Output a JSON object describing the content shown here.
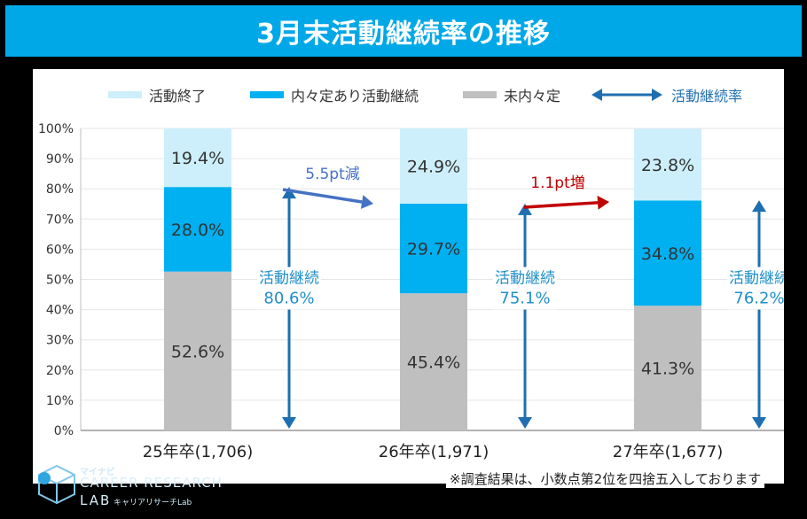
{
  "title": "3月末活動継続率の推移",
  "legend": {
    "ended": "活動終了",
    "continuing": "内々定あり活動継続",
    "no_offer": "未内々定",
    "rate": "活動継続率"
  },
  "colors": {
    "ended": "#cdeffb",
    "continuing": "#00b0f0",
    "no_offer": "#bfbfbf",
    "arrow": "#1f6fb0",
    "decrease": "#4472c4",
    "increase": "#c00000",
    "title_bg": "#00a8e8"
  },
  "chart_data": {
    "type": "bar",
    "stacked": true,
    "categories": [
      "25年卒(1,706)",
      "26年卒(1,971)",
      "27年卒(1,677)"
    ],
    "series": [
      {
        "name": "未内々定",
        "values": [
          52.6,
          45.4,
          41.3
        ]
      },
      {
        "name": "内々定あり活動継続",
        "values": [
          28.0,
          29.7,
          34.8
        ]
      },
      {
        "name": "活動終了",
        "values": [
          19.4,
          24.9,
          23.8
        ]
      }
    ],
    "continuation_rate": [
      80.6,
      75.1,
      76.2
    ],
    "rate_label": "活動継続",
    "value_labels": [
      [
        "52.6%",
        "28.0%",
        "19.4%"
      ],
      [
        "45.4%",
        "29.7%",
        "24.9%"
      ],
      [
        "41.3%",
        "34.8%",
        "23.8%"
      ]
    ],
    "rate_labels": [
      "80.6%",
      "75.1%",
      "76.2%"
    ],
    "changes": [
      "5.5pt減",
      "1.1pt増"
    ],
    "yticks": [
      "0%",
      "10%",
      "20%",
      "30%",
      "40%",
      "50%",
      "60%",
      "70%",
      "80%",
      "90%",
      "100%"
    ],
    "ylim": [
      0,
      100
    ],
    "grid": true,
    "legend_position": "top"
  },
  "footnote": "※調査結果は、小数点第2位を四捨五入しております",
  "logo": {
    "small": "マイナビ",
    "main": "CAREER RESEARCH",
    "lab": "LAB",
    "sub": "キャリアリサーチLab"
  }
}
